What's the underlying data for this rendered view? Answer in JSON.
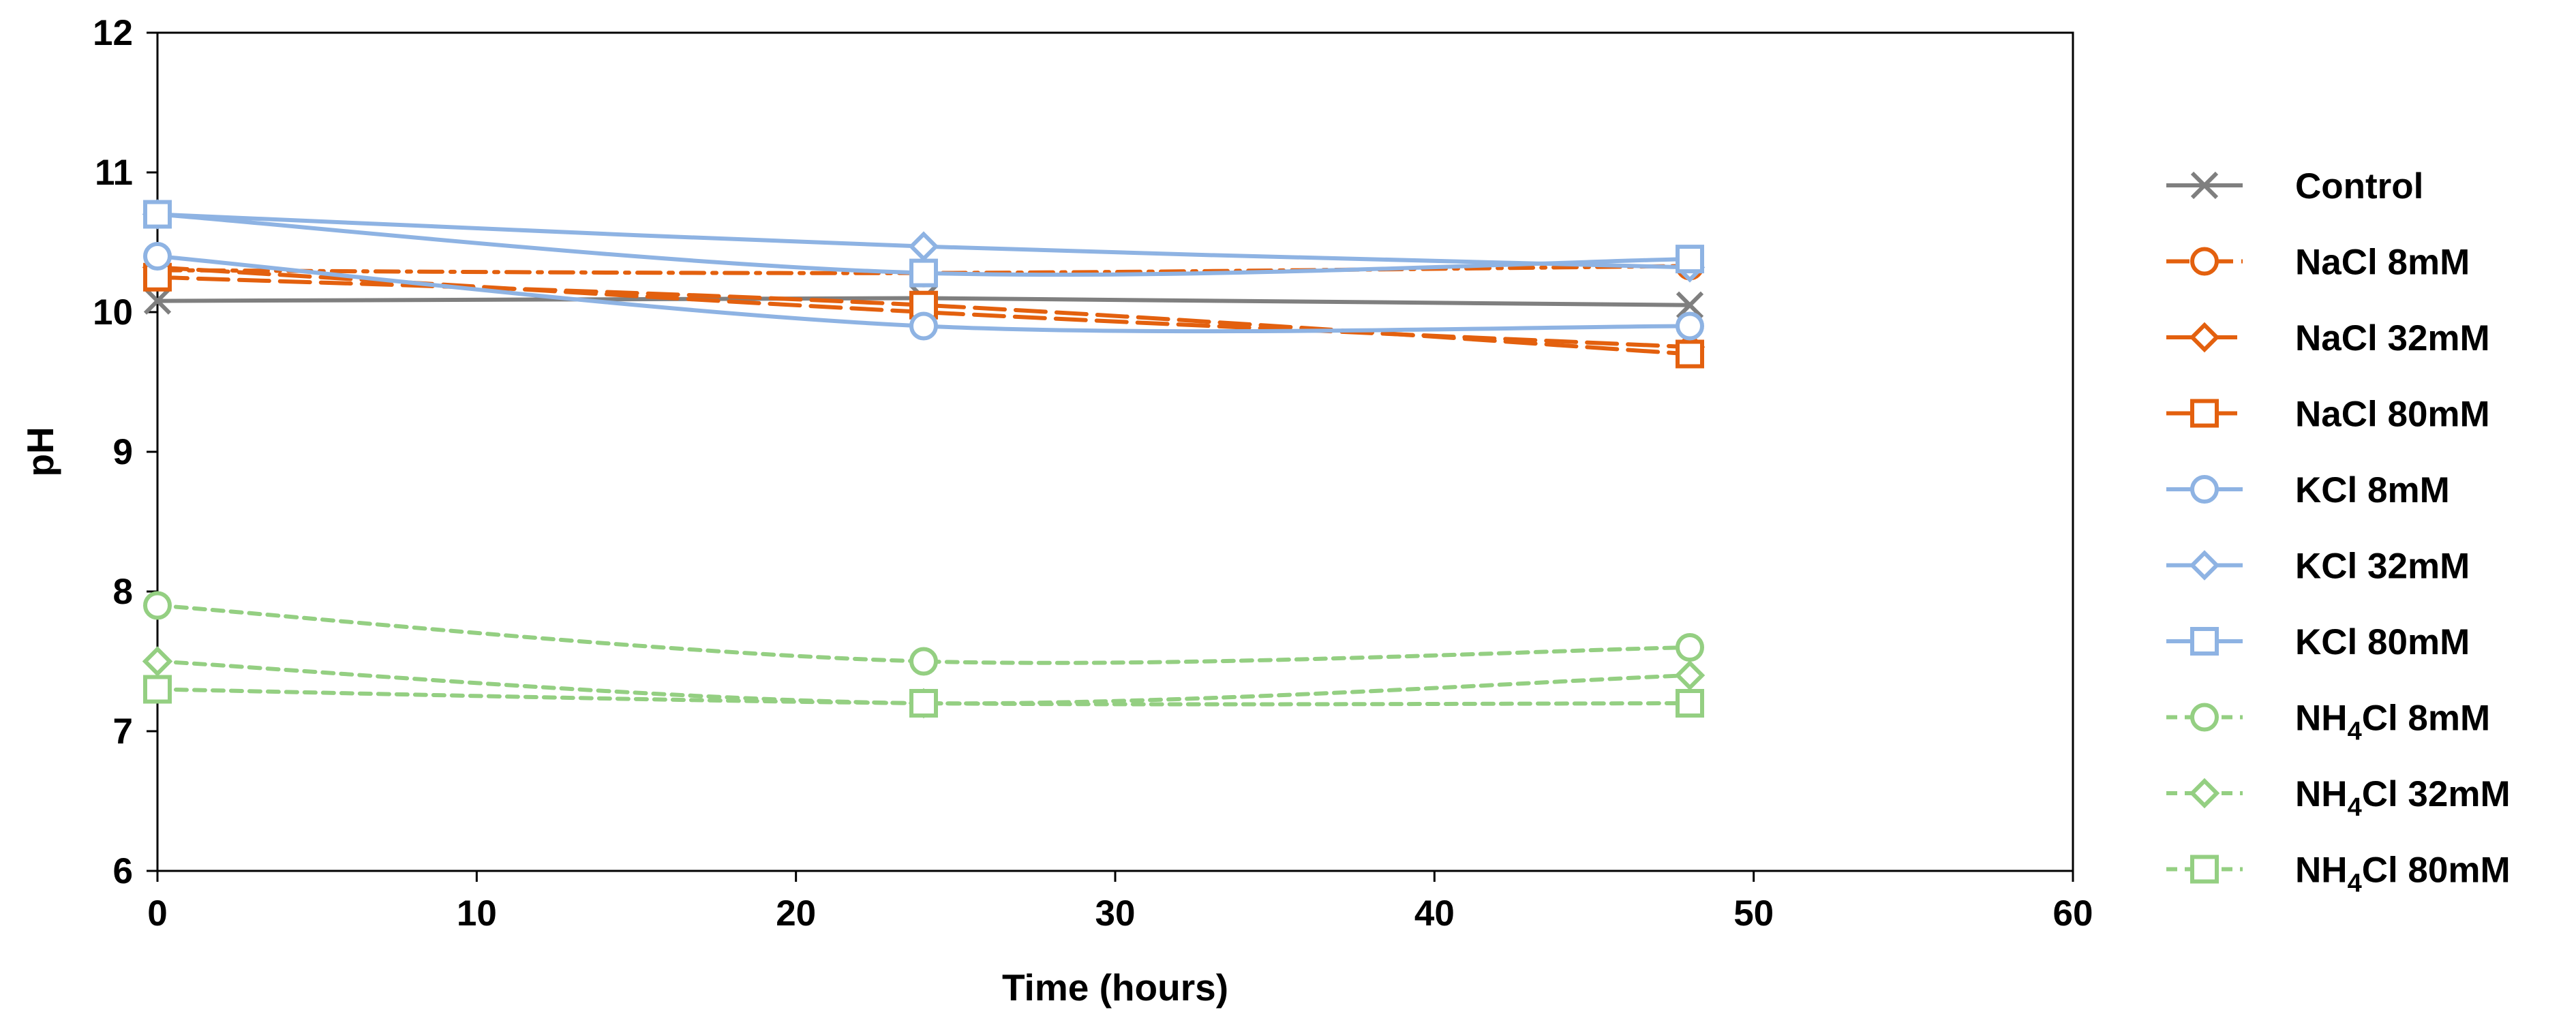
{
  "chart_data": {
    "type": "line",
    "title": "",
    "xlabel": "Time (hours)",
    "ylabel": "pH",
    "xlim": [
      0,
      60
    ],
    "ylim": [
      6,
      12
    ],
    "xticks": [
      "0",
      "10",
      "20",
      "30",
      "40",
      "50",
      "60"
    ],
    "yticks": [
      "6",
      "7",
      "8",
      "9",
      "10",
      "11",
      "12"
    ],
    "grid": false,
    "legend_position": "right",
    "x": [
      0,
      24,
      48
    ],
    "series": [
      {
        "name": "Control",
        "name_prefix": "Control",
        "name_sub": "",
        "name_suffix": "",
        "values": [
          10.08,
          10.1,
          10.05
        ],
        "color": "#7f7f7f",
        "dash": "solid",
        "marker": "x",
        "smooth": false
      },
      {
        "name": "NaCl 8mM",
        "name_prefix": "NaCl 8mM",
        "name_sub": "",
        "name_suffix": "",
        "values": [
          10.3,
          10.28,
          10.33
        ],
        "color": "#e3600e",
        "dash": "dashdot",
        "marker": "circle",
        "smooth": true
      },
      {
        "name": "NaCl 32mM",
        "name_prefix": "NaCl 32mM",
        "name_sub": "",
        "name_suffix": "",
        "values": [
          10.32,
          10.0,
          9.75
        ],
        "color": "#e3600e",
        "dash": "longdash",
        "marker": "diamond",
        "smooth": true
      },
      {
        "name": "NaCl 80mM",
        "name_prefix": "NaCl 80mM",
        "name_sub": "",
        "name_suffix": "",
        "values": [
          10.25,
          10.05,
          9.7
        ],
        "color": "#e3600e",
        "dash": "longdash",
        "marker": "square",
        "smooth": true
      },
      {
        "name": "KCl 8mM",
        "name_prefix": "KCl 8mM",
        "name_sub": "",
        "name_suffix": "",
        "values": [
          10.4,
          9.9,
          9.9
        ],
        "color": "#8eb3e3",
        "dash": "solid",
        "marker": "circle",
        "smooth": true
      },
      {
        "name": "KCl 32mM",
        "name_prefix": "KCl 32mM",
        "name_sub": "",
        "name_suffix": "",
        "values": [
          10.7,
          10.47,
          10.32
        ],
        "color": "#8eb3e3",
        "dash": "solid",
        "marker": "diamond",
        "smooth": true
      },
      {
        "name": "KCl 80mM",
        "name_prefix": "KCl 80mM",
        "name_sub": "",
        "name_suffix": "",
        "values": [
          10.7,
          10.28,
          10.38
        ],
        "color": "#8eb3e3",
        "dash": "solid",
        "marker": "square",
        "smooth": true
      },
      {
        "name": "NH4Cl 8mM",
        "name_prefix": "NH",
        "name_sub": "4",
        "name_suffix": "Cl 8mM",
        "values": [
          7.9,
          7.5,
          7.6
        ],
        "color": "#94cf82",
        "dash": "dashed",
        "marker": "circle",
        "smooth": true
      },
      {
        "name": "NH4Cl 32mM",
        "name_prefix": "NH",
        "name_sub": "4",
        "name_suffix": "Cl 32mM",
        "values": [
          7.5,
          7.2,
          7.4
        ],
        "color": "#94cf82",
        "dash": "dashed",
        "marker": "diamond",
        "smooth": true
      },
      {
        "name": "NH4Cl 80mM",
        "name_prefix": "NH",
        "name_sub": "4",
        "name_suffix": "Cl 80mM",
        "values": [
          7.3,
          7.2,
          7.2
        ],
        "color": "#94cf82",
        "dash": "dashed",
        "marker": "square",
        "smooth": true
      }
    ]
  }
}
